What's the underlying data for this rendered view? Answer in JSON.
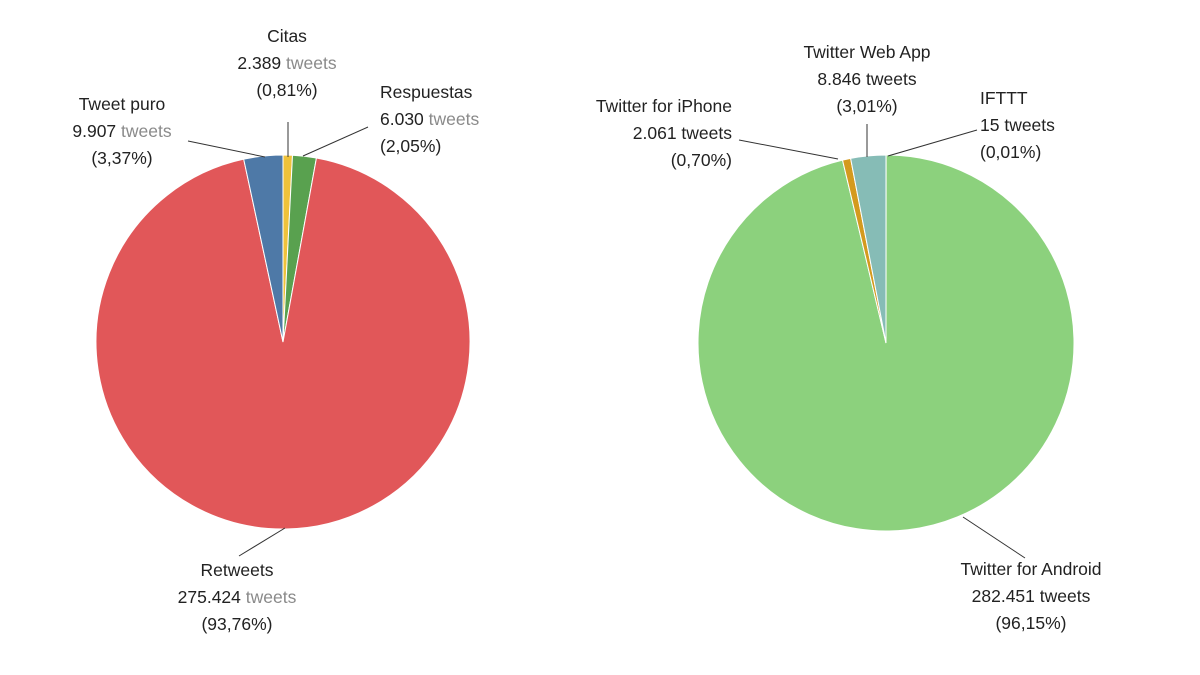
{
  "chart_data": [
    {
      "type": "pie",
      "slices": [
        {
          "label": "Citas",
          "count": "2.389",
          "unit": "tweets",
          "pct_text": "(0,81%)",
          "value": 0.81,
          "color": "#efc23a"
        },
        {
          "label": "Respuestas",
          "count": "6.030",
          "unit": "tweets",
          "pct_text": "(2,05%)",
          "value": 2.05,
          "color": "#59a14f"
        },
        {
          "label": "Retweets",
          "count": "275.424",
          "unit": "tweets",
          "pct_text": "(93,76%)",
          "value": 93.76,
          "color": "#e15759"
        },
        {
          "label": "Tweet puro",
          "count": "9.907",
          "unit": "tweets",
          "pct_text": "(3,37%)",
          "value": 3.37,
          "color": "#4e79a7"
        }
      ]
    },
    {
      "type": "pie",
      "slices": [
        {
          "label": "IFTTT",
          "count": "15",
          "unit": "tweets",
          "pct_text": "(0,01%)",
          "value": 0.01,
          "color": "#4e79a7"
        },
        {
          "label": "Twitter for Android",
          "count": "282.451",
          "unit": "tweets",
          "pct_text": "(96,15%)",
          "value": 96.15,
          "color": "#8cd17d"
        },
        {
          "label": "Twitter for iPhone",
          "count": "2.061",
          "unit": "tweets",
          "pct_text": "(0,70%)",
          "value": 0.7,
          "color": "#d49a1e"
        },
        {
          "label": "Twitter Web App",
          "count": "8.846",
          "unit": "tweets",
          "pct_text": "(3,01%)",
          "value": 3.01,
          "color": "#86bcb6"
        }
      ]
    }
  ]
}
